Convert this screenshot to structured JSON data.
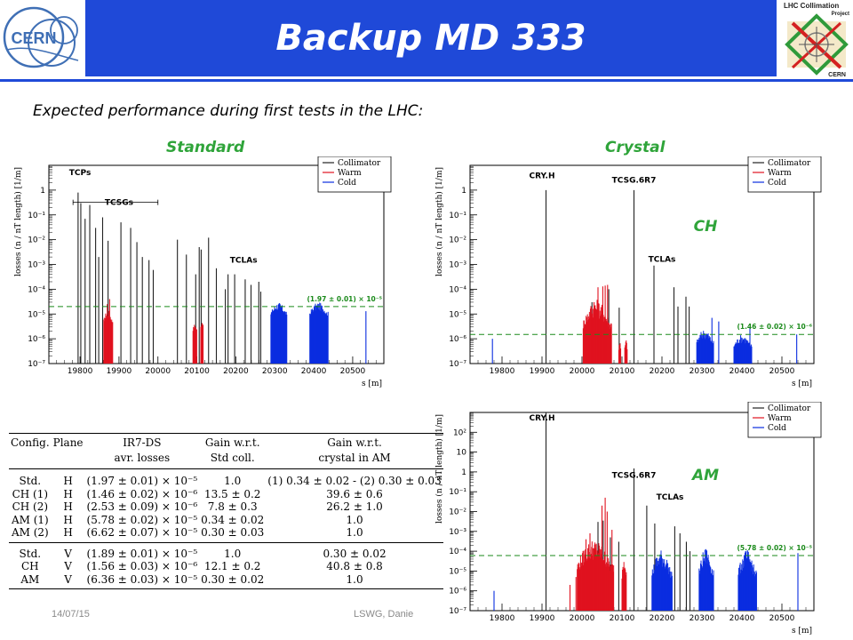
{
  "slide": {
    "title": "Backup MD 333",
    "subtitle": "Expected performance during first tests in the LHC:",
    "col_standard": "Standard",
    "col_crystal": "Crystal",
    "regime_ch": "CH",
    "regime_am": "AM",
    "footer_date": "14/07/15",
    "footer_event": "LSWG, Danie",
    "colors": {
      "accent": "#1f49d8",
      "label_green": "#2fa43a"
    }
  },
  "logos": {
    "left": {
      "text": "CERN",
      "icon": "cern-logo-icon"
    },
    "right": {
      "line1": "LHC Collimation",
      "line2": "Project",
      "line3": "CERN",
      "icon": "lhc-collimation-logo-icon"
    }
  },
  "table": {
    "headers": {
      "config": "Config.",
      "plane": "Plane",
      "ir7_l1": "IR7-DS",
      "ir7_l2": "avr. losses",
      "gain_std_l1": "Gain w.r.t.",
      "gain_std_l2": "Std coll.",
      "gain_am_l1": "Gain w.r.t.",
      "gain_am_l2": "crystal in AM"
    },
    "rows": [
      {
        "config": "Std.",
        "plane": "H",
        "losses": "(1.97 ± 0.01) × 10⁻⁵",
        "gain_std": "1.0",
        "gain_am": "(1) 0.34 ± 0.02 - (2) 0.30 ± 0.03"
      },
      {
        "config": "CH (1)",
        "plane": "H",
        "losses": "(1.46 ± 0.02) × 10⁻⁶",
        "gain_std": "13.5 ± 0.2",
        "gain_am": "39.6 ± 0.6"
      },
      {
        "config": "CH (2)",
        "plane": "H",
        "losses": "(2.53 ± 0.09) × 10⁻⁶",
        "gain_std": "7.8 ± 0.3",
        "gain_am": "26.2 ± 1.0"
      },
      {
        "config": "AM (1)",
        "plane": "H",
        "losses": "(5.78 ± 0.02) × 10⁻⁵",
        "gain_std": "0.34 ± 0.02",
        "gain_am": "1.0"
      },
      {
        "config": "AM (2)",
        "plane": "H",
        "losses": "(6.62 ± 0.07) × 10⁻⁵",
        "gain_std": "0.30 ± 0.03",
        "gain_am": "1.0"
      },
      {
        "config": "Std.",
        "plane": "V",
        "losses": "(1.89 ± 0.01) × 10⁻⁵",
        "gain_std": "1.0",
        "gain_am": "0.30 ± 0.02"
      },
      {
        "config": "CH",
        "plane": "V",
        "losses": "(1.56 ± 0.03) × 10⁻⁶",
        "gain_std": "12.1 ± 0.2",
        "gain_am": "40.8 ± 0.8"
      },
      {
        "config": "AM",
        "plane": "V",
        "losses": "(6.36 ± 0.03) × 10⁻⁵",
        "gain_std": "0.30 ± 0.02",
        "gain_am": "1.0"
      }
    ]
  },
  "chart_data": [
    {
      "id": "standard",
      "type": "bar",
      "x_axis_label": "s [m]",
      "y_axis_label": "losses (n / nT length) [1/m]",
      "xlim": [
        19720,
        20580
      ],
      "ylim": [
        1e-07,
        10
      ],
      "y_scale": "log",
      "x_ticks": [
        19800,
        19900,
        20000,
        20100,
        20200,
        20300,
        20400,
        20500
      ],
      "y_tick_labels": [
        "10⁻⁷",
        "10⁻⁶",
        "10⁻⁵",
        "10⁻⁴",
        "10⁻³",
        "10⁻²",
        "10⁻¹",
        "1"
      ],
      "legend": [
        "Collimator",
        "Warm",
        "Cold"
      ],
      "legend_position": "top-right",
      "reference_line": {
        "value": 2e-05,
        "label": "(1.97 ± 0.01) × 10⁻⁵"
      },
      "annotations": [
        {
          "text": "TCPs",
          "s": 19800,
          "y": 4
        },
        {
          "text": "TCSGs",
          "s": 19900,
          "y": 0.25
        },
        {
          "text": "TCLAs",
          "s": 20220,
          "y": 0.0012
        }
      ],
      "annotation_span": {
        "from": 19782,
        "to": 20000,
        "y": 0.25
      },
      "series": [
        {
          "name": "Collimator",
          "color": "#222222",
          "points": [
            [
              19795,
              0.8
            ],
            [
              19802,
              0.3
            ],
            [
              19813,
              0.07
            ],
            [
              19825,
              0.25
            ],
            [
              19840,
              0.03
            ],
            [
              19848,
              0.002
            ],
            [
              19858,
              0.08
            ],
            [
              19872,
              0.009
            ],
            [
              19905,
              0.05
            ],
            [
              19930,
              0.03
            ],
            [
              19946,
              0.008
            ],
            [
              19960,
              0.002
            ],
            [
              19977,
              0.0015
            ],
            [
              19988,
              0.0006
            ],
            [
              20050,
              0.01
            ],
            [
              20073,
              0.0025
            ],
            [
              20097,
              0.0004
            ],
            [
              20106,
              0.005
            ],
            [
              20111,
              0.004
            ],
            [
              20130,
              0.012
            ],
            [
              20150,
              0.0007
            ],
            [
              20173,
              0.0001
            ],
            [
              20180,
              0.0004
            ],
            [
              20197,
              0.0004
            ],
            [
              20224,
              0.00025
            ],
            [
              20239,
              0.00015
            ],
            [
              20259,
              0.0002
            ],
            [
              20264,
              8e-05
            ]
          ]
        },
        {
          "name": "Warm",
          "color": "#e0121f",
          "segments": [
            {
              "from": 19861,
              "to": 19884,
              "peak": 1.5e-05,
              "base": 1e-06
            },
            {
              "from": 20090,
              "to": 20100,
              "peak": 4e-06,
              "base": 1e-06
            },
            {
              "from": 20110,
              "to": 20117,
              "peak": 6e-06,
              "base": 1e-06
            }
          ],
          "points": [
            [
              19870,
              2.5e-05
            ],
            [
              19876,
              4e-05
            ]
          ]
        },
        {
          "name": "Cold",
          "color": "#0a2de0",
          "segments": [
            {
              "from": 20290,
              "to": 20332,
              "peak": 3e-05,
              "base": 2e-06
            },
            {
              "from": 20390,
              "to": 20438,
              "peak": 3e-05,
              "base": 2e-06
            }
          ],
          "points": [
            [
              20534,
              1.3e-05
            ]
          ]
        }
      ]
    },
    {
      "id": "ch",
      "type": "bar",
      "x_axis_label": "s [m]",
      "y_axis_label": "losses (n / nT length) [1/m]",
      "xlim": [
        19720,
        20580
      ],
      "ylim": [
        1e-07,
        10
      ],
      "y_scale": "log",
      "x_ticks": [
        19800,
        19900,
        20000,
        20100,
        20200,
        20300,
        20400,
        20500
      ],
      "y_tick_labels": [
        "10⁻⁷",
        "10⁻⁶",
        "10⁻⁵",
        "10⁻⁴",
        "10⁻³",
        "10⁻²",
        "10⁻¹",
        "1"
      ],
      "legend": [
        "Collimator",
        "Warm",
        "Cold"
      ],
      "legend_position": "top-right",
      "reference_line": {
        "value": 1.5e-06,
        "label": "(1.46 ± 0.02) × 10⁻⁶"
      },
      "annotations": [
        {
          "text": "CRY.H",
          "s": 19900,
          "y": 3
        },
        {
          "text": "TCSG.6R7",
          "s": 20130,
          "y": 2
        },
        {
          "text": "TCLAs",
          "s": 20200,
          "y": 0.0013
        }
      ],
      "series": [
        {
          "name": "Collimator",
          "color": "#222222",
          "points": [
            [
              19910,
              1.0
            ],
            [
              20025,
              3e-05
            ],
            [
              20067,
              0.0001
            ],
            [
              20093,
              1.8e-05
            ],
            [
              20130,
              1.0
            ],
            [
              20180,
              0.0009
            ],
            [
              20230,
              0.00012
            ],
            [
              20240,
              2e-05
            ],
            [
              20260,
              5e-05
            ],
            [
              20268,
              2e-05
            ]
          ]
        },
        {
          "name": "Warm",
          "color": "#e0121f",
          "segments": [
            {
              "from": 20003,
              "to": 20075,
              "peak": 4e-05,
              "base": 1e-07
            },
            {
              "from": 20092,
              "to": 20097,
              "peak": 1e-06,
              "base": 1e-07
            },
            {
              "from": 20107,
              "to": 20114,
              "peak": 1e-06,
              "base": 1e-07
            }
          ],
          "points": [
            [
              20040,
              0.00012
            ],
            [
              20052,
              0.00013
            ],
            [
              20058,
              0.00014
            ],
            [
              20064,
              0.00015
            ],
            [
              20030,
              3e-05
            ]
          ]
        },
        {
          "name": "Cold",
          "color": "#0a2de0",
          "segments": [
            {
              "from": 20287,
              "to": 20330,
              "peak": 2.5e-06,
              "base": 1e-07
            },
            {
              "from": 20380,
              "to": 20425,
              "peak": 1.5e-06,
              "base": 1e-07
            }
          ],
          "points": [
            [
              19776,
              1e-06
            ],
            [
              20325,
              7e-06
            ],
            [
              20342,
              5e-06
            ],
            [
              20420,
              3e-06
            ],
            [
              20537,
              1.5e-06
            ]
          ]
        }
      ]
    },
    {
      "id": "am",
      "type": "bar",
      "x_axis_label": "s [m]",
      "y_axis_label": "losses (n / nT length) [1/m]",
      "xlim": [
        19720,
        20580
      ],
      "ylim": [
        1e-07,
        1000
      ],
      "y_scale": "log",
      "x_ticks": [
        19800,
        19900,
        20000,
        20100,
        20200,
        20300,
        20400,
        20500
      ],
      "y_tick_labels": [
        "10⁻⁷",
        "10⁻⁶",
        "10⁻⁵",
        "10⁻⁴",
        "10⁻³",
        "10⁻²",
        "10⁻¹",
        "1",
        "10",
        "10²"
      ],
      "legend": [
        "Collimator",
        "Warm",
        "Cold"
      ],
      "legend_position": "top-right",
      "reference_line": {
        "value": 6e-05,
        "label": "(5.78 ± 0.02) × 10⁻⁵"
      },
      "annotations": [
        {
          "text": "CRY.H",
          "s": 19900,
          "y": 400
        },
        {
          "text": "TCSG.6R7",
          "s": 20130,
          "y": 0.5
        },
        {
          "text": "TCLAs",
          "s": 20220,
          "y": 0.04
        }
      ],
      "series": [
        {
          "name": "Collimator",
          "color": "#222222",
          "points": [
            [
              19910,
              1000
            ],
            [
              20040,
              0.003
            ],
            [
              20053,
              0.0035
            ],
            [
              20071,
              0.0005
            ],
            [
              20092,
              0.0003
            ],
            [
              20130,
              1.5
            ],
            [
              20162,
              0.02
            ],
            [
              20182,
              0.0025
            ],
            [
              20232,
              0.0018
            ],
            [
              20245,
              0.0008
            ],
            [
              20261,
              0.0003
            ],
            [
              20270,
              0.0001
            ]
          ]
        },
        {
          "name": "Warm",
          "color": "#e0121f",
          "segments": [
            {
              "from": 19988,
              "to": 20080,
              "peak": 0.0004,
              "base": 1e-07
            },
            {
              "from": 20100,
              "to": 20112,
              "peak": 0.0001,
              "base": 1e-07
            }
          ],
          "points": [
            [
              19970,
              2e-06
            ],
            [
              19985,
              5e-06
            ],
            [
              20050,
              0.02
            ],
            [
              20058,
              0.05
            ],
            [
              20063,
              0.01
            ],
            [
              20075,
              0.0012
            ],
            [
              20010,
              0.0004
            ],
            [
              20020,
              0.0008
            ]
          ]
        },
        {
          "name": "Cold",
          "color": "#0a2de0",
          "segments": [
            {
              "from": 20175,
              "to": 20226,
              "peak": 0.00012,
              "base": 1e-07
            },
            {
              "from": 20293,
              "to": 20330,
              "peak": 0.00015,
              "base": 1e-07
            },
            {
              "from": 20391,
              "to": 20437,
              "peak": 0.00012,
              "base": 1e-07
            }
          ],
          "points": [
            [
              19780,
              1e-06
            ],
            [
              20540,
              8e-05
            ]
          ]
        }
      ]
    }
  ]
}
